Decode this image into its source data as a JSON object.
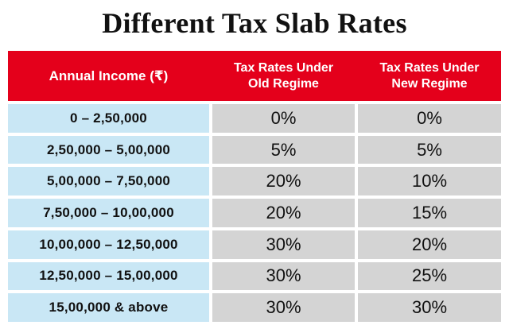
{
  "title": "Different Tax Slab Rates",
  "table": {
    "headers": {
      "income": "Annual Income (₹)",
      "old_regime_line1": "Tax Rates Under",
      "old_regime_line2": "Old Regime",
      "new_regime_line1": "Tax Rates Under",
      "new_regime_line2": "New Regime"
    },
    "rows": [
      {
        "income": "0 – 2,50,000",
        "old": "0%",
        "new": "0%"
      },
      {
        "income": "2,50,000 – 5,00,000",
        "old": "5%",
        "new": "5%"
      },
      {
        "income": "5,00,000 – 7,50,000",
        "old": "20%",
        "new": "10%"
      },
      {
        "income": "7,50,000 – 10,00,000",
        "old": "20%",
        "new": "15%"
      },
      {
        "income": "10,00,000 – 12,50,000",
        "old": "30%",
        "new": "20%"
      },
      {
        "income": "12,50,000 – 15,00,000",
        "old": "30%",
        "new": "25%"
      },
      {
        "income": "15,00,000 & above",
        "old": "30%",
        "new": "30%"
      }
    ]
  },
  "colors": {
    "header_bg": "#e4001b",
    "income_bg": "#c9e7f5",
    "rate_bg": "#d4d4d4"
  }
}
